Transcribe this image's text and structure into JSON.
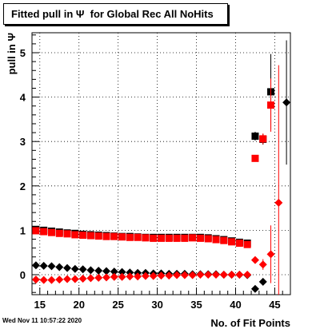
{
  "title": "Fitted pull in Ψ  for Global Rec All NoHits",
  "timestamp": "Wed Nov 11 10:57:22 2020",
  "chart_data": {
    "type": "scatter",
    "title": "Fitted pull in Ψ  for Global Rec All NoHits",
    "xlabel": "No. of Fit Points",
    "ylabel": "pull in  Ψ",
    "xlim": [
      14,
      47
    ],
    "ylim": [
      -0.45,
      5.45
    ],
    "grid": true,
    "x_ticks": [
      15,
      20,
      25,
      30,
      35,
      40,
      45
    ],
    "y_ticks": [
      0,
      1,
      2,
      3,
      4,
      5
    ],
    "series": [
      {
        "color": "#000000",
        "marker": "square",
        "points": [
          {
            "x": 14.5,
            "y": 1.02
          },
          {
            "x": 15.5,
            "y": 1.0
          },
          {
            "x": 16.5,
            "y": 0.98
          },
          {
            "x": 17.5,
            "y": 0.96
          },
          {
            "x": 18.5,
            "y": 0.94
          },
          {
            "x": 19.5,
            "y": 0.93
          },
          {
            "x": 20.5,
            "y": 0.91
          },
          {
            "x": 21.5,
            "y": 0.9
          },
          {
            "x": 22.5,
            "y": 0.89
          },
          {
            "x": 23.5,
            "y": 0.88
          },
          {
            "x": 24.5,
            "y": 0.87
          },
          {
            "x": 25.5,
            "y": 0.86
          },
          {
            "x": 26.5,
            "y": 0.86
          },
          {
            "x": 27.5,
            "y": 0.85
          },
          {
            "x": 28.5,
            "y": 0.84
          },
          {
            "x": 29.5,
            "y": 0.84
          },
          {
            "x": 30.5,
            "y": 0.84
          },
          {
            "x": 31.5,
            "y": 0.84
          },
          {
            "x": 32.5,
            "y": 0.84
          },
          {
            "x": 33.5,
            "y": 0.84
          },
          {
            "x": 34.5,
            "y": 0.84
          },
          {
            "x": 35.5,
            "y": 0.84
          },
          {
            "x": 36.5,
            "y": 0.83
          },
          {
            "x": 37.5,
            "y": 0.81
          },
          {
            "x": 38.5,
            "y": 0.79
          },
          {
            "x": 39.5,
            "y": 0.76
          },
          {
            "x": 40.5,
            "y": 0.73
          },
          {
            "x": 41.5,
            "y": 0.71
          },
          {
            "x": 42.5,
            "y": 3.12,
            "err": 0.1
          },
          {
            "x": 43.5,
            "y": 3.05,
            "err": 0.12
          },
          {
            "x": 44.5,
            "y": 4.12,
            "err": 0.85
          }
        ]
      },
      {
        "color": "#ff0000",
        "marker": "square",
        "points": [
          {
            "x": 14.5,
            "y": 0.99
          },
          {
            "x": 15.5,
            "y": 0.97
          },
          {
            "x": 16.5,
            "y": 0.95
          },
          {
            "x": 17.5,
            "y": 0.93
          },
          {
            "x": 18.5,
            "y": 0.92
          },
          {
            "x": 19.5,
            "y": 0.9
          },
          {
            "x": 20.5,
            "y": 0.89
          },
          {
            "x": 21.5,
            "y": 0.88
          },
          {
            "x": 22.5,
            "y": 0.87
          },
          {
            "x": 23.5,
            "y": 0.86
          },
          {
            "x": 24.5,
            "y": 0.86
          },
          {
            "x": 25.5,
            "y": 0.85
          },
          {
            "x": 26.5,
            "y": 0.84
          },
          {
            "x": 27.5,
            "y": 0.84
          },
          {
            "x": 28.5,
            "y": 0.83
          },
          {
            "x": 29.5,
            "y": 0.82
          },
          {
            "x": 30.5,
            "y": 0.82
          },
          {
            "x": 31.5,
            "y": 0.82
          },
          {
            "x": 32.5,
            "y": 0.82
          },
          {
            "x": 33.5,
            "y": 0.82
          },
          {
            "x": 34.5,
            "y": 0.83
          },
          {
            "x": 35.5,
            "y": 0.82
          },
          {
            "x": 36.5,
            "y": 0.81
          },
          {
            "x": 37.5,
            "y": 0.79
          },
          {
            "x": 38.5,
            "y": 0.77
          },
          {
            "x": 39.5,
            "y": 0.74
          },
          {
            "x": 40.5,
            "y": 0.71
          },
          {
            "x": 41.5,
            "y": 0.68
          },
          {
            "x": 42.5,
            "y": 2.62,
            "err": 0.05
          },
          {
            "x": 43.5,
            "y": 3.06,
            "err": 0.12
          },
          {
            "x": 44.5,
            "y": 3.82,
            "err": 0.6
          }
        ]
      },
      {
        "color": "#000000",
        "marker": "diamond",
        "points": [
          {
            "x": 14.5,
            "y": 0.21
          },
          {
            "x": 15.5,
            "y": 0.2
          },
          {
            "x": 16.5,
            "y": 0.19
          },
          {
            "x": 17.5,
            "y": 0.17
          },
          {
            "x": 18.5,
            "y": 0.15
          },
          {
            "x": 19.5,
            "y": 0.13
          },
          {
            "x": 20.5,
            "y": 0.12
          },
          {
            "x": 21.5,
            "y": 0.1
          },
          {
            "x": 22.5,
            "y": 0.09
          },
          {
            "x": 23.5,
            "y": 0.08
          },
          {
            "x": 24.5,
            "y": 0.07
          },
          {
            "x": 25.5,
            "y": 0.06
          },
          {
            "x": 26.5,
            "y": 0.05
          },
          {
            "x": 27.5,
            "y": 0.04
          },
          {
            "x": 28.5,
            "y": 0.04
          },
          {
            "x": 29.5,
            "y": 0.03
          },
          {
            "x": 30.5,
            "y": 0.03
          },
          {
            "x": 31.5,
            "y": 0.02
          },
          {
            "x": 32.5,
            "y": 0.02
          },
          {
            "x": 33.5,
            "y": 0.02
          },
          {
            "x": 34.5,
            "y": 0.01
          },
          {
            "x": 35.5,
            "y": 0.01
          },
          {
            "x": 36.5,
            "y": 0.01
          },
          {
            "x": 37.5,
            "y": 0.01
          },
          {
            "x": 38.5,
            "y": 0.0
          },
          {
            "x": 39.5,
            "y": 0.0
          },
          {
            "x": 40.5,
            "y": 0.0
          },
          {
            "x": 41.5,
            "y": -0.01
          },
          {
            "x": 42.5,
            "y": -0.32,
            "err": 0.05
          },
          {
            "x": 43.5,
            "y": -0.16,
            "err": 0.08
          },
          {
            "x": 46.5,
            "y": 3.88,
            "err": 1.4
          }
        ]
      },
      {
        "color": "#ff0000",
        "marker": "diamond",
        "points": [
          {
            "x": 14.5,
            "y": -0.11
          },
          {
            "x": 15.5,
            "y": -0.12
          },
          {
            "x": 16.5,
            "y": -0.12
          },
          {
            "x": 17.5,
            "y": -0.11
          },
          {
            "x": 18.5,
            "y": -0.1
          },
          {
            "x": 19.5,
            "y": -0.1
          },
          {
            "x": 20.5,
            "y": -0.09
          },
          {
            "x": 21.5,
            "y": -0.08
          },
          {
            "x": 22.5,
            "y": -0.07
          },
          {
            "x": 23.5,
            "y": -0.06
          },
          {
            "x": 24.5,
            "y": -0.05
          },
          {
            "x": 25.5,
            "y": -0.05
          },
          {
            "x": 26.5,
            "y": -0.04
          },
          {
            "x": 27.5,
            "y": -0.04
          },
          {
            "x": 28.5,
            "y": -0.03
          },
          {
            "x": 29.5,
            "y": -0.03
          },
          {
            "x": 30.5,
            "y": -0.02
          },
          {
            "x": 31.5,
            "y": -0.02
          },
          {
            "x": 32.5,
            "y": -0.01
          },
          {
            "x": 33.5,
            "y": -0.01
          },
          {
            "x": 34.5,
            "y": -0.01
          },
          {
            "x": 35.5,
            "y": 0.0
          },
          {
            "x": 36.5,
            "y": 0.0
          },
          {
            "x": 37.5,
            "y": 0.0
          },
          {
            "x": 38.5,
            "y": 0.0
          },
          {
            "x": 39.5,
            "y": 0.0
          },
          {
            "x": 40.5,
            "y": 0.0
          },
          {
            "x": 41.5,
            "y": 0.0
          },
          {
            "x": 42.5,
            "y": 0.33,
            "err": 0.05
          },
          {
            "x": 43.5,
            "y": 0.23,
            "err": 0.12
          },
          {
            "x": 44.5,
            "y": 0.46,
            "err": 0.65
          },
          {
            "x": 45.5,
            "y": 1.62,
            "err": 3.1
          }
        ]
      }
    ]
  }
}
